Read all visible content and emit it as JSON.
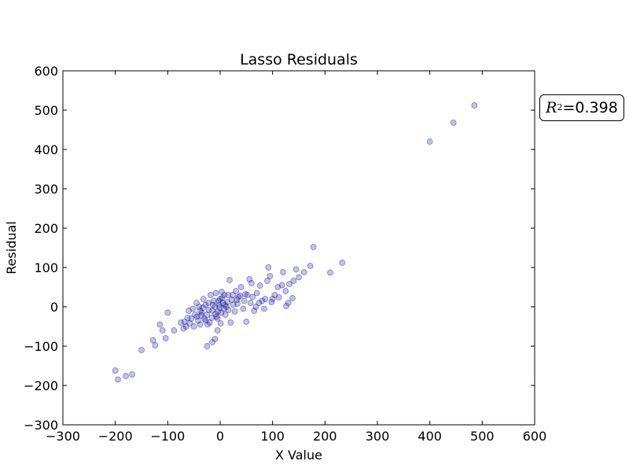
{
  "chart_data": {
    "type": "scatter",
    "title": "Lasso Residuals",
    "xlabel": "X Value",
    "ylabel": "Residual",
    "xlim": [
      -300,
      600
    ],
    "ylim": [
      -300,
      600
    ],
    "xticks": [
      -300,
      -200,
      -100,
      0,
      100,
      200,
      300,
      400,
      500,
      600
    ],
    "yticks": [
      -300,
      -200,
      -100,
      0,
      100,
      200,
      300,
      400,
      500,
      600
    ],
    "xtick_labels": [
      "−300",
      "−200",
      "−100",
      "0",
      "100",
      "200",
      "300",
      "400",
      "500",
      "600"
    ],
    "ytick_labels": [
      "−300",
      "−200",
      "−100",
      "0",
      "100",
      "200",
      "300",
      "400",
      "500",
      "600"
    ],
    "grid": false,
    "marker_color": "#0000ff",
    "marker_alpha": 0.25,
    "annotation": {
      "symbol": "R",
      "superscript": "2",
      "text": "=0.398"
    },
    "points": [
      [
        485,
        512
      ],
      [
        445,
        468
      ],
      [
        400,
        420
      ],
      [
        233,
        112
      ],
      [
        210,
        87
      ],
      [
        178,
        152
      ],
      [
        172,
        104
      ],
      [
        160,
        88
      ],
      [
        150,
        75
      ],
      [
        145,
        95
      ],
      [
        140,
        66
      ],
      [
        132,
        58
      ],
      [
        125,
        40
      ],
      [
        120,
        88
      ],
      [
        118,
        55
      ],
      [
        130,
        10
      ],
      [
        126,
        2
      ],
      [
        110,
        50
      ],
      [
        100,
        20
      ],
      [
        95,
        78
      ],
      [
        92,
        100
      ],
      [
        90,
        66
      ],
      [
        86,
        20
      ],
      [
        80,
        15
      ],
      [
        76,
        54
      ],
      [
        70,
        35
      ],
      [
        68,
        0
      ],
      [
        65,
        -10
      ],
      [
        60,
        60
      ],
      [
        56,
        70
      ],
      [
        52,
        30
      ],
      [
        50,
        -38
      ],
      [
        46,
        15
      ],
      [
        40,
        50
      ],
      [
        35,
        25
      ],
      [
        30,
        40
      ],
      [
        25,
        5
      ],
      [
        20,
        -40
      ],
      [
        18,
        68
      ],
      [
        15,
        30
      ],
      [
        12,
        0
      ],
      [
        10,
        -20
      ],
      [
        8,
        30
      ],
      [
        5,
        10
      ],
      [
        2,
        -15
      ],
      [
        0,
        20
      ],
      [
        -2,
        5
      ],
      [
        -5,
        -30
      ],
      [
        -5,
        -60
      ],
      [
        -8,
        35
      ],
      [
        -10,
        0
      ],
      [
        -10,
        -82
      ],
      [
        -12,
        15
      ],
      [
        -15,
        -10
      ],
      [
        -15,
        -90
      ],
      [
        -18,
        30
      ],
      [
        -20,
        -40
      ],
      [
        -22,
        10
      ],
      [
        -25,
        -20
      ],
      [
        -25,
        -100
      ],
      [
        -28,
        5
      ],
      [
        -30,
        -30
      ],
      [
        -32,
        20
      ],
      [
        -35,
        -15
      ],
      [
        -38,
        -45
      ],
      [
        -40,
        0
      ],
      [
        -42,
        -35
      ],
      [
        -45,
        10
      ],
      [
        -48,
        -20
      ],
      [
        -50,
        -50
      ],
      [
        -55,
        -30
      ],
      [
        -60,
        -10
      ],
      [
        -65,
        -50
      ],
      [
        -70,
        -55
      ],
      [
        -75,
        -40
      ],
      [
        -88,
        -60
      ],
      [
        -100,
        -15
      ],
      [
        -104,
        -80
      ],
      [
        -110,
        -60
      ],
      [
        -115,
        -45
      ],
      [
        -124,
        -98
      ],
      [
        -128,
        -85
      ],
      [
        -150,
        -110
      ],
      [
        -168,
        -172
      ],
      [
        -180,
        -176
      ],
      [
        -195,
        -185
      ],
      [
        -200,
        -162
      ],
      [
        3,
        38
      ],
      [
        7,
        -5
      ],
      [
        -3,
        15
      ],
      [
        -7,
        -25
      ],
      [
        14,
        12
      ],
      [
        -14,
        5
      ],
      [
        22,
        18
      ],
      [
        -22,
        -8
      ],
      [
        28,
        -12
      ],
      [
        -28,
        -35
      ],
      [
        33,
        8
      ],
      [
        -33,
        -2
      ],
      [
        38,
        28
      ],
      [
        -38,
        -10
      ],
      [
        44,
        -5
      ],
      [
        -44,
        -25
      ],
      [
        48,
        32
      ],
      [
        58,
        10
      ],
      [
        62,
        25
      ],
      [
        74,
        10
      ],
      [
        84,
        -5
      ],
      [
        98,
        12
      ],
      [
        104,
        30
      ],
      [
        112,
        24
      ],
      [
        138,
        22
      ],
      [
        -52,
        -5
      ],
      [
        -58,
        -42
      ],
      [
        -62,
        -28
      ],
      [
        -68,
        -38
      ],
      [
        1,
        -42
      ],
      [
        -1,
        -2
      ],
      [
        4,
        22
      ],
      [
        -4,
        -12
      ],
      [
        9,
        5
      ],
      [
        -9,
        -18
      ],
      [
        16,
        -8
      ],
      [
        -16,
        -28
      ],
      [
        24,
        30
      ],
      [
        -24,
        -45
      ],
      [
        32,
        18
      ],
      [
        -36,
        -22
      ]
    ]
  }
}
